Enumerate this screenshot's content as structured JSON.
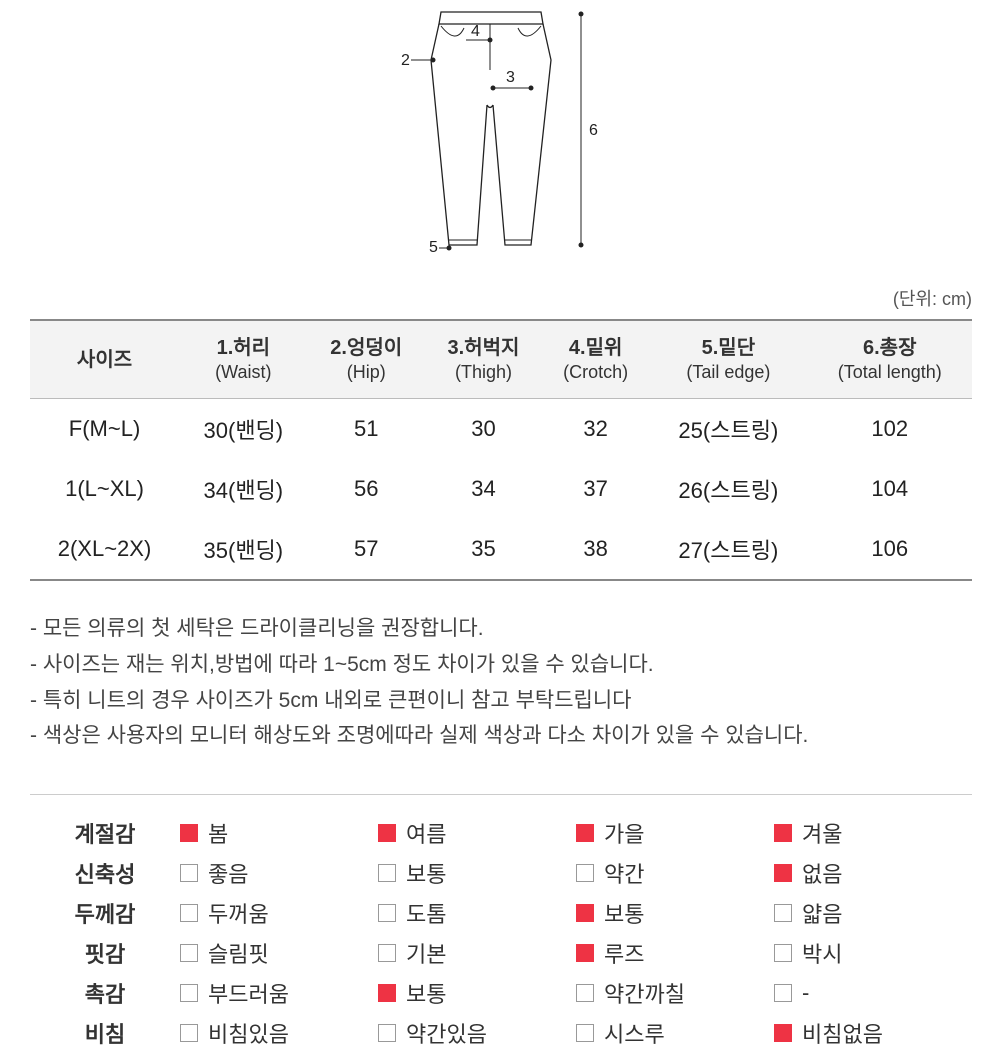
{
  "diagram": {
    "labels": {
      "n2": "2",
      "n3": "3",
      "n4": "4",
      "n5": "5",
      "n6": "6"
    },
    "stroke": "#222222"
  },
  "unit_label": "(단위: cm)",
  "size_table": {
    "headers": [
      {
        "kr": "사이즈",
        "en": ""
      },
      {
        "kr": "1.허리",
        "en": "(Waist)"
      },
      {
        "kr": "2.엉덩이",
        "en": "(Hip)"
      },
      {
        "kr": "3.허벅지",
        "en": "(Thigh)"
      },
      {
        "kr": "4.밑위",
        "en": "(Crotch)"
      },
      {
        "kr": "5.밑단",
        "en": "(Tail edge)"
      },
      {
        "kr": "6.총장",
        "en": "(Total length)"
      }
    ],
    "rows": [
      {
        "size": "F(M~L)",
        "waist": "30(밴딩)",
        "hip": "51",
        "thigh": "30",
        "crotch": "32",
        "tail": "25(스트링)",
        "length": "102"
      },
      {
        "size": "1(L~XL)",
        "waist": "34(밴딩)",
        "hip": "56",
        "thigh": "34",
        "crotch": "37",
        "tail": "26(스트링)",
        "length": "104"
      },
      {
        "size": "2(XL~2X)",
        "waist": "35(밴딩)",
        "hip": "57",
        "thigh": "35",
        "crotch": "38",
        "tail": "27(스트링)",
        "length": "106"
      }
    ]
  },
  "notes": [
    "- 모든 의류의 첫 세탁은 드라이클리닝을 권장합니다.",
    "- 사이즈는 재는 위치,방법에 따라 1~5cm 정도 차이가 있을 수 있습니다.",
    "- 특히 니트의 경우 사이즈가 5cm 내외로 큰편이니 참고 부탁드립니다",
    "- 색상은 사용자의 모니터 해상도와 조명에따라 실제 색상과 다소 차이가 있을 수 있습니다."
  ],
  "attributes": {
    "checkbox_color_checked": "#ee3344",
    "checkbox_color_unchecked": "#999999",
    "rows": [
      {
        "label": "계절감",
        "opts": [
          {
            "text": "봄",
            "checked": true
          },
          {
            "text": "여름",
            "checked": true
          },
          {
            "text": "가을",
            "checked": true
          },
          {
            "text": "겨울",
            "checked": true
          }
        ]
      },
      {
        "label": "신축성",
        "opts": [
          {
            "text": "좋음",
            "checked": false
          },
          {
            "text": "보통",
            "checked": false
          },
          {
            "text": "약간",
            "checked": false
          },
          {
            "text": "없음",
            "checked": true
          }
        ]
      },
      {
        "label": "두께감",
        "opts": [
          {
            "text": "두꺼움",
            "checked": false
          },
          {
            "text": "도톰",
            "checked": false
          },
          {
            "text": "보통",
            "checked": true
          },
          {
            "text": "얇음",
            "checked": false
          }
        ]
      },
      {
        "label": "핏감",
        "opts": [
          {
            "text": "슬림핏",
            "checked": false
          },
          {
            "text": "기본",
            "checked": false
          },
          {
            "text": "루즈",
            "checked": true
          },
          {
            "text": "박시",
            "checked": false
          }
        ]
      },
      {
        "label": "촉감",
        "opts": [
          {
            "text": "부드러움",
            "checked": false
          },
          {
            "text": "보통",
            "checked": true
          },
          {
            "text": "약간까칠",
            "checked": false
          },
          {
            "text": "-",
            "checked": false
          }
        ]
      },
      {
        "label": "비침",
        "opts": [
          {
            "text": "비침있음",
            "checked": false
          },
          {
            "text": "약간있음",
            "checked": false
          },
          {
            "text": "시스루",
            "checked": false
          },
          {
            "text": "비침없음",
            "checked": true
          }
        ]
      }
    ]
  }
}
